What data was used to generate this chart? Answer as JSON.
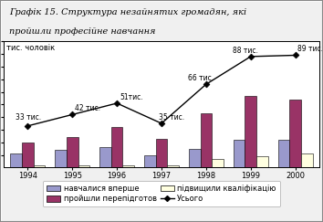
{
  "title_line1": "Графік 15. Структура незайнятих громадян, які",
  "title_line2": "пройшли професійне навчання",
  "years": [
    "1994",
    "1995",
    "1996",
    "1997",
    "1998",
    "1999",
    "2000"
  ],
  "navch_vp": [
    11,
    14,
    16,
    10,
    15,
    22,
    22
  ],
  "proishly": [
    20,
    24,
    32,
    23,
    43,
    57,
    54
  ],
  "pidvyshyly": [
    2,
    2,
    2,
    2,
    7,
    9,
    11
  ],
  "usogo": [
    33,
    42,
    51,
    35,
    66,
    88,
    89
  ],
  "usogo_labels": [
    "33 тис.",
    "42 тис.",
    "51тис.",
    "35 тис.",
    "66 тис.",
    "88 тис.",
    "89 тис."
  ],
  "color_navch": "#9999cc",
  "color_proishly": "#993366",
  "color_pidvyshyly": "#ffffe0",
  "color_usogo": "#000000",
  "ylabel": "тис. чоловік",
  "ylim": [
    0,
    100
  ],
  "yticks": [
    10,
    20,
    30,
    40,
    50,
    60,
    70,
    80,
    90,
    100
  ],
  "legend_navch": "навчалися вперше",
  "legend_proishly": "пройшли перепідготов",
  "legend_pidvyshyly": "підвищили кваліфікацію",
  "legend_usogo": "Усього",
  "bg_color": "#f0f0f0",
  "plot_bg": "#ffffff",
  "border_color": "#aaaaaa"
}
